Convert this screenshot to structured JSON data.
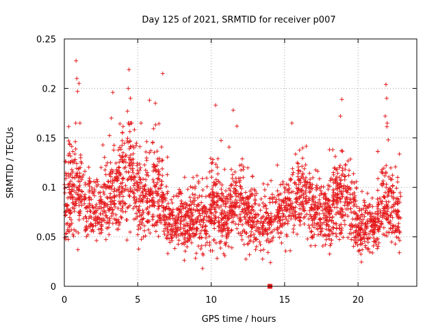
{
  "chart_data": {
    "type": "scatter",
    "title": "Day 125 of 2021, SRMTID for receiver p007",
    "xlabel": "GPS time / hours",
    "ylabel": "SRMTID / TECUs",
    "xlim": [
      0,
      24
    ],
    "ylim": [
      0,
      0.25
    ],
    "x_ticks": [
      0,
      5,
      10,
      15,
      20
    ],
    "y_ticks": [
      0,
      0.05,
      0.1,
      0.15,
      0.2,
      0.25
    ],
    "x_tick_labels": [
      "0",
      "5",
      "10",
      "15",
      "20"
    ],
    "y_tick_labels": [
      "0",
      "0.05",
      "0.1",
      "0.15",
      "0.2",
      "0.25"
    ],
    "grid": true,
    "marker": "+",
    "color": "#e41a1c",
    "data_end_hour": 22.9,
    "envelope": [
      {
        "t": 0.0,
        "base": 0.085,
        "spread": 0.035
      },
      {
        "t": 0.8,
        "base": 0.1,
        "spread": 0.05
      },
      {
        "t": 1.5,
        "base": 0.085,
        "spread": 0.035
      },
      {
        "t": 2.5,
        "base": 0.075,
        "spread": 0.03
      },
      {
        "t": 3.5,
        "base": 0.1,
        "spread": 0.045
      },
      {
        "t": 4.4,
        "base": 0.115,
        "spread": 0.05
      },
      {
        "t": 5.2,
        "base": 0.085,
        "spread": 0.04
      },
      {
        "t": 6.3,
        "base": 0.1,
        "spread": 0.045
      },
      {
        "t": 7.3,
        "base": 0.06,
        "spread": 0.025
      },
      {
        "t": 8.5,
        "base": 0.07,
        "spread": 0.03
      },
      {
        "t": 9.5,
        "base": 0.065,
        "spread": 0.03
      },
      {
        "t": 10.4,
        "base": 0.085,
        "spread": 0.045
      },
      {
        "t": 11.0,
        "base": 0.06,
        "spread": 0.03
      },
      {
        "t": 11.7,
        "base": 0.095,
        "spread": 0.04
      },
      {
        "t": 12.5,
        "base": 0.07,
        "spread": 0.03
      },
      {
        "t": 13.5,
        "base": 0.06,
        "spread": 0.025
      },
      {
        "t": 14.2,
        "base": 0.07,
        "spread": 0.03
      },
      {
        "t": 15.2,
        "base": 0.085,
        "spread": 0.035
      },
      {
        "t": 16.5,
        "base": 0.09,
        "spread": 0.04
      },
      {
        "t": 17.5,
        "base": 0.07,
        "spread": 0.03
      },
      {
        "t": 18.5,
        "base": 0.085,
        "spread": 0.04
      },
      {
        "t": 19.3,
        "base": 0.09,
        "spread": 0.04
      },
      {
        "t": 20.2,
        "base": 0.055,
        "spread": 0.025
      },
      {
        "t": 21.2,
        "base": 0.06,
        "spread": 0.025
      },
      {
        "t": 21.8,
        "base": 0.085,
        "spread": 0.045
      },
      {
        "t": 22.9,
        "base": 0.07,
        "spread": 0.03
      }
    ],
    "spikes": [
      {
        "t": 0.8,
        "y": 0.228
      },
      {
        "t": 0.85,
        "y": 0.21
      },
      {
        "t": 0.9,
        "y": 0.197
      },
      {
        "t": 1.0,
        "y": 0.205
      },
      {
        "t": 3.3,
        "y": 0.196
      },
      {
        "t": 4.4,
        "y": 0.219
      },
      {
        "t": 4.35,
        "y": 0.2
      },
      {
        "t": 4.5,
        "y": 0.19
      },
      {
        "t": 4.3,
        "y": 0.177
      },
      {
        "t": 6.7,
        "y": 0.215
      },
      {
        "t": 6.2,
        "y": 0.185
      },
      {
        "t": 5.8,
        "y": 0.188
      },
      {
        "t": 10.3,
        "y": 0.183
      },
      {
        "t": 11.5,
        "y": 0.178
      },
      {
        "t": 18.9,
        "y": 0.189
      },
      {
        "t": 21.9,
        "y": 0.204
      },
      {
        "t": 21.95,
        "y": 0.19
      },
      {
        "t": 21.85,
        "y": 0.172
      },
      {
        "t": 3.2,
        "y": 0.17
      },
      {
        "t": 18.8,
        "y": 0.172
      }
    ],
    "points_per_hour": 120,
    "special_marker": {
      "t": 14.0,
      "y": 0.0
    }
  }
}
